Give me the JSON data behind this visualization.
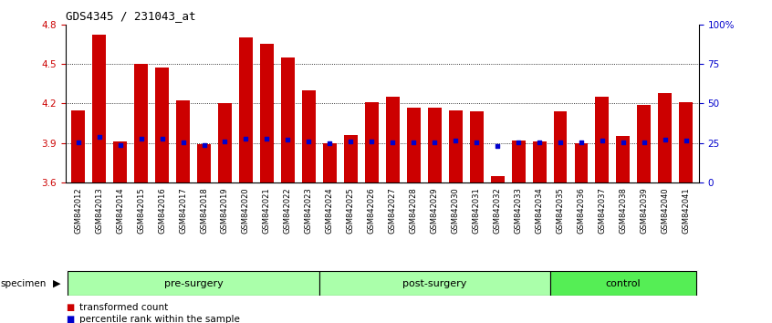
{
  "title": "GDS4345 / 231043_at",
  "samples": [
    "GSM842012",
    "GSM842013",
    "GSM842014",
    "GSM842015",
    "GSM842016",
    "GSM842017",
    "GSM842018",
    "GSM842019",
    "GSM842020",
    "GSM842021",
    "GSM842022",
    "GSM842023",
    "GSM842024",
    "GSM842025",
    "GSM842026",
    "GSM842027",
    "GSM842028",
    "GSM842029",
    "GSM842030",
    "GSM842031",
    "GSM842032",
    "GSM842033",
    "GSM842034",
    "GSM842035",
    "GSM842036",
    "GSM842037",
    "GSM842038",
    "GSM842039",
    "GSM842040",
    "GSM842041"
  ],
  "bar_tops": [
    4.15,
    4.72,
    3.91,
    4.5,
    4.47,
    4.22,
    3.89,
    4.2,
    4.7,
    4.65,
    4.55,
    4.3,
    3.9,
    3.96,
    4.21,
    4.25,
    4.17,
    4.17,
    4.15,
    4.14,
    3.65,
    3.92,
    3.91,
    4.14,
    3.9,
    4.25,
    3.95,
    4.19,
    4.28,
    4.21
  ],
  "blue_dots": [
    3.905,
    3.945,
    3.885,
    3.935,
    3.935,
    3.905,
    3.885,
    3.91,
    3.935,
    3.935,
    3.925,
    3.91,
    3.9,
    3.91,
    3.91,
    3.905,
    3.905,
    3.905,
    3.915,
    3.905,
    3.875,
    3.905,
    3.905,
    3.905,
    3.905,
    3.915,
    3.905,
    3.905,
    3.925,
    3.915
  ],
  "ylim": [
    3.6,
    4.8
  ],
  "yticks_left": [
    3.6,
    3.9,
    4.2,
    4.5,
    4.8
  ],
  "ytick_labels_right": [
    "0",
    "25",
    "50",
    "75",
    "100%"
  ],
  "group_info": [
    {
      "label": "pre-surgery",
      "start": 0,
      "end": 11,
      "color": "#AAFFAA"
    },
    {
      "label": "post-surgery",
      "start": 12,
      "end": 22,
      "color": "#AAFFAA"
    },
    {
      "label": "control",
      "start": 23,
      "end": 29,
      "color": "#55EE55"
    }
  ],
  "bar_color": "#CC0000",
  "dot_color": "#0000CC",
  "axis_color_left": "#CC0000",
  "axis_color_right": "#0000CC",
  "xtick_bg": "#C8C8C8",
  "grid_yticks": [
    3.9,
    4.2,
    4.5
  ]
}
